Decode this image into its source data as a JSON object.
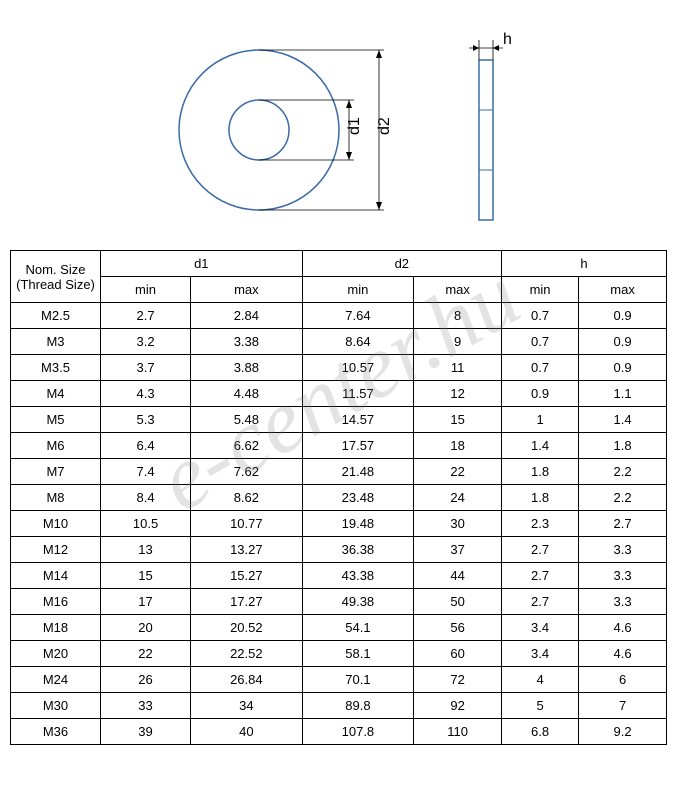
{
  "diagram": {
    "type": "engineering-drawing",
    "front_view": {
      "outer_diameter_label": "d2",
      "inner_diameter_label": "d1",
      "stroke_color": "#3a6aa8",
      "stroke_width": 1.5,
      "outer_r": 80,
      "inner_r": 30,
      "dim_color": "#000000"
    },
    "side_view": {
      "thickness_label": "h",
      "stroke_color": "#3a6aa8",
      "stroke_width": 1.5,
      "width": 14,
      "height": 160,
      "dim_color": "#000000"
    }
  },
  "table": {
    "type": "table",
    "header_top": {
      "nom": "Nom. Size",
      "nom_sub": "(Thread Size)",
      "d1": "d1",
      "d2": "d2",
      "h": "h"
    },
    "header_sub": [
      "min",
      "max",
      "min",
      "max",
      "min",
      "max"
    ],
    "rows": [
      {
        "size": "M2.5",
        "d1min": "2.7",
        "d1max": "2.84",
        "d2min": "7.64",
        "d2max": "8",
        "hmin": "0.7",
        "hmax": "0.9"
      },
      {
        "size": "M3",
        "d1min": "3.2",
        "d1max": "3.38",
        "d2min": "8.64",
        "d2max": "9",
        "hmin": "0.7",
        "hmax": "0.9"
      },
      {
        "size": "M3.5",
        "d1min": "3.7",
        "d1max": "3.88",
        "d2min": "10.57",
        "d2max": "11",
        "hmin": "0.7",
        "hmax": "0.9"
      },
      {
        "size": "M4",
        "d1min": "4.3",
        "d1max": "4.48",
        "d2min": "11.57",
        "d2max": "12",
        "hmin": "0.9",
        "hmax": "1.1"
      },
      {
        "size": "M5",
        "d1min": "5.3",
        "d1max": "5.48",
        "d2min": "14.57",
        "d2max": "15",
        "hmin": "1",
        "hmax": "1.4"
      },
      {
        "size": "M6",
        "d1min": "6.4",
        "d1max": "6.62",
        "d2min": "17.57",
        "d2max": "18",
        "hmin": "1.4",
        "hmax": "1.8"
      },
      {
        "size": "M7",
        "d1min": "7.4",
        "d1max": "7.62",
        "d2min": "21.48",
        "d2max": "22",
        "hmin": "1.8",
        "hmax": "2.2"
      },
      {
        "size": "M8",
        "d1min": "8.4",
        "d1max": "8.62",
        "d2min": "23.48",
        "d2max": "24",
        "hmin": "1.8",
        "hmax": "2.2"
      },
      {
        "size": "M10",
        "d1min": "10.5",
        "d1max": "10.77",
        "d2min": "19.48",
        "d2max": "30",
        "hmin": "2.3",
        "hmax": "2.7"
      },
      {
        "size": "M12",
        "d1min": "13",
        "d1max": "13.27",
        "d2min": "36.38",
        "d2max": "37",
        "hmin": "2.7",
        "hmax": "3.3"
      },
      {
        "size": "M14",
        "d1min": "15",
        "d1max": "15.27",
        "d2min": "43.38",
        "d2max": "44",
        "hmin": "2.7",
        "hmax": "3.3"
      },
      {
        "size": "M16",
        "d1min": "17",
        "d1max": "17.27",
        "d2min": "49.38",
        "d2max": "50",
        "hmin": "2.7",
        "hmax": "3.3"
      },
      {
        "size": "M18",
        "d1min": "20",
        "d1max": "20.52",
        "d2min": "54.1",
        "d2max": "56",
        "hmin": "3.4",
        "hmax": "4.6"
      },
      {
        "size": "M20",
        "d1min": "22",
        "d1max": "22.52",
        "d2min": "58.1",
        "d2max": "60",
        "hmin": "3.4",
        "hmax": "4.6"
      },
      {
        "size": "M24",
        "d1min": "26",
        "d1max": "26.84",
        "d2min": "70.1",
        "d2max": "72",
        "hmin": "4",
        "hmax": "6"
      },
      {
        "size": "M30",
        "d1min": "33",
        "d1max": "34",
        "d2min": "89.8",
        "d2max": "92",
        "hmin": "5",
        "hmax": "7"
      },
      {
        "size": "M36",
        "d1min": "39",
        "d1max": "40",
        "d2min": "107.8",
        "d2max": "110",
        "hmin": "6.8",
        "hmax": "9.2"
      }
    ],
    "column_widths": [
      "90px",
      "auto",
      "auto",
      "auto",
      "auto",
      "auto",
      "auto"
    ],
    "border_color": "#000000",
    "font_size": 13
  },
  "watermark": {
    "text": "e-center.hu",
    "color": "rgba(128,128,128,0.22)",
    "font_size": 90,
    "rotation_deg": -30
  }
}
